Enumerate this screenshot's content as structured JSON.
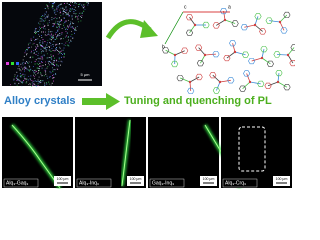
{
  "micrograph": {
    "scale_bar": "5 μm"
  },
  "structure": {
    "axes": [
      "a",
      "b",
      "c"
    ]
  },
  "captions": {
    "left": "Alloy crystals",
    "right": "Tuning and quenching of PL"
  },
  "panels": [
    {
      "label": "Alq₃-Gaq₃",
      "scale_bar": "100 μm"
    },
    {
      "label": "Alq₃-Inq₃",
      "scale_bar": "100 μm"
    },
    {
      "label": "Gaq₃-Inq₃",
      "scale_bar": "100 μm"
    },
    {
      "label": "Alq₃-Crq₃",
      "scale_bar": "100 μm"
    }
  ]
}
